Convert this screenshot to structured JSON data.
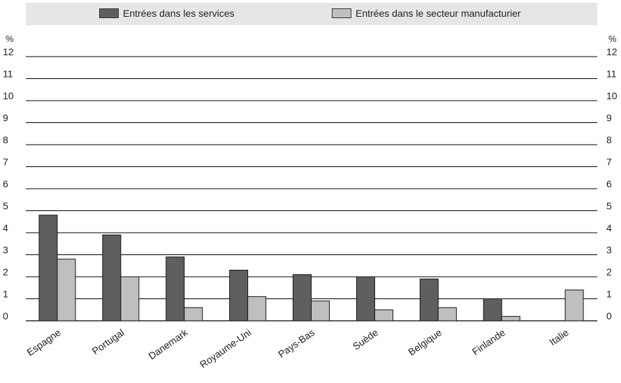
{
  "legend": {
    "services_label": "Entrées dans les services",
    "manufacturing_label": "Entrées dans le secteur manufacturier"
  },
  "colors": {
    "services": "#5f5f5f",
    "manufacturing": "#bfbfbf",
    "legend_bg": "#e6e6e6",
    "grid": "#000000"
  },
  "chart_data": {
    "type": "bar",
    "title": "",
    "xlabel": "",
    "ylabel": "%",
    "ylim": [
      0,
      12
    ],
    "yticks": [
      0,
      1,
      2,
      3,
      4,
      5,
      6,
      7,
      8,
      9,
      10,
      11,
      12
    ],
    "grid": true,
    "legend_position": "top",
    "categories": [
      "Espagne",
      "Portugal",
      "Danemark",
      "Royaume-Uni",
      "Pays-Bas",
      "Suède",
      "Belgique",
      "Finlande",
      "Italie"
    ],
    "series": [
      {
        "name": "Entrées dans les services",
        "values": [
          4.8,
          3.9,
          2.9,
          2.3,
          2.1,
          2.0,
          1.9,
          1.0,
          null
        ]
      },
      {
        "name": "Entrées dans le secteur manufacturier",
        "values": [
          2.8,
          2.0,
          0.6,
          1.1,
          0.9,
          0.5,
          0.6,
          0.2,
          1.4
        ]
      }
    ]
  }
}
